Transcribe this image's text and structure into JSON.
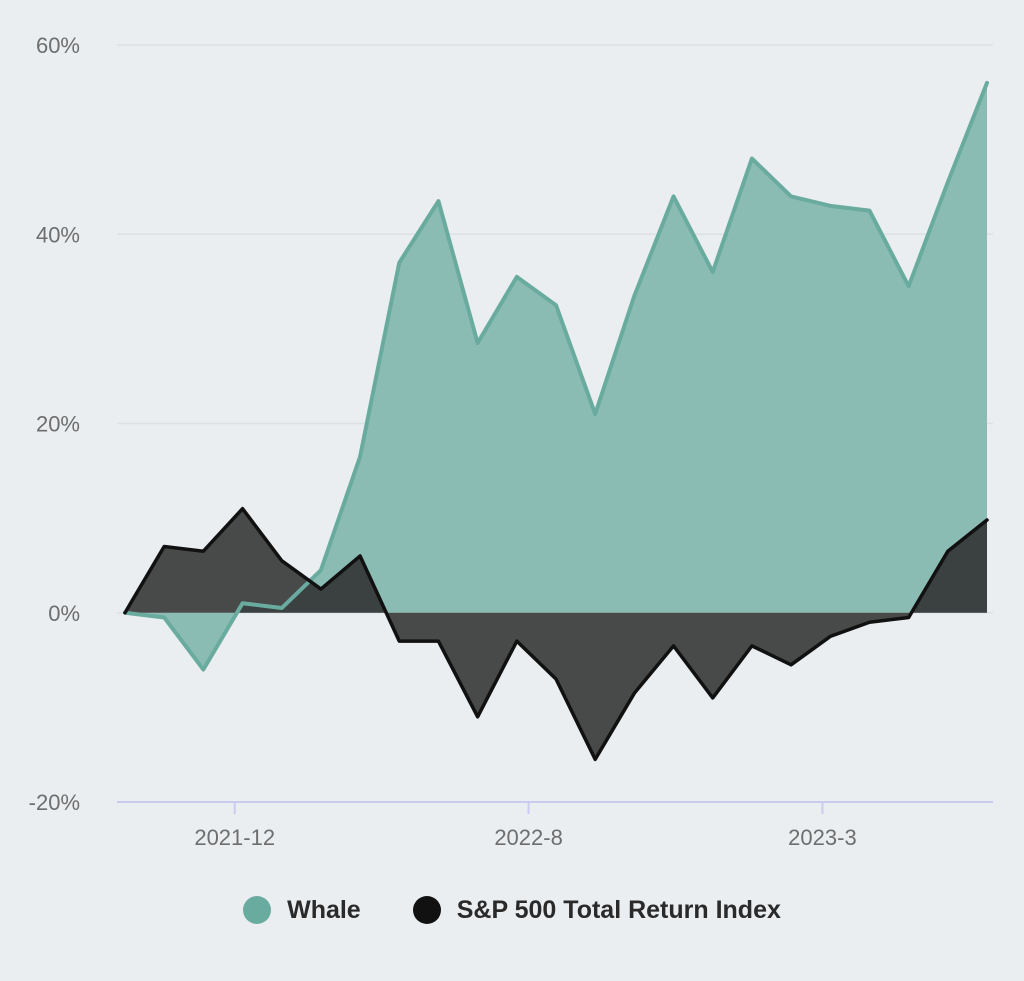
{
  "chart_data": {
    "type": "area",
    "title": "",
    "xlabel": "",
    "ylabel": "",
    "ylim": [
      -20,
      60
    ],
    "y_ticks": [
      -20,
      0,
      20,
      40,
      60
    ],
    "y_tick_labels": [
      "-20%",
      "0%",
      "20%",
      "40%",
      "60%"
    ],
    "x_ticks": [
      {
        "label": "2021-12",
        "index": 2.8
      },
      {
        "label": "2022-8",
        "index": 10.3
      },
      {
        "label": "2023-3",
        "index": 17.8
      }
    ],
    "x_count": 23,
    "grid": true,
    "legend_position": "bottom",
    "series": [
      {
        "name": "Whale",
        "color": "#6aaba0",
        "fill": "#8bbcb4",
        "values": [
          0,
          -0.5,
          -6,
          1,
          0.5,
          4.5,
          16.5,
          37,
          43.5,
          28.5,
          35.5,
          32.5,
          21,
          33.5,
          44,
          36,
          48,
          44,
          43,
          42.5,
          34.5,
          45.5,
          56
        ]
      },
      {
        "name": "S&P 500 Total Return Index",
        "color": "#111111",
        "fill": "#2b2b2b",
        "values": [
          0,
          7,
          6.5,
          11,
          5.5,
          2.5,
          6,
          -3,
          -3,
          -11,
          -3,
          -7,
          -15.5,
          -8.5,
          -3.5,
          -9,
          -3.5,
          -5.5,
          -2.5,
          -1,
          -0.5,
          6.5,
          9.8
        ]
      }
    ]
  }
}
